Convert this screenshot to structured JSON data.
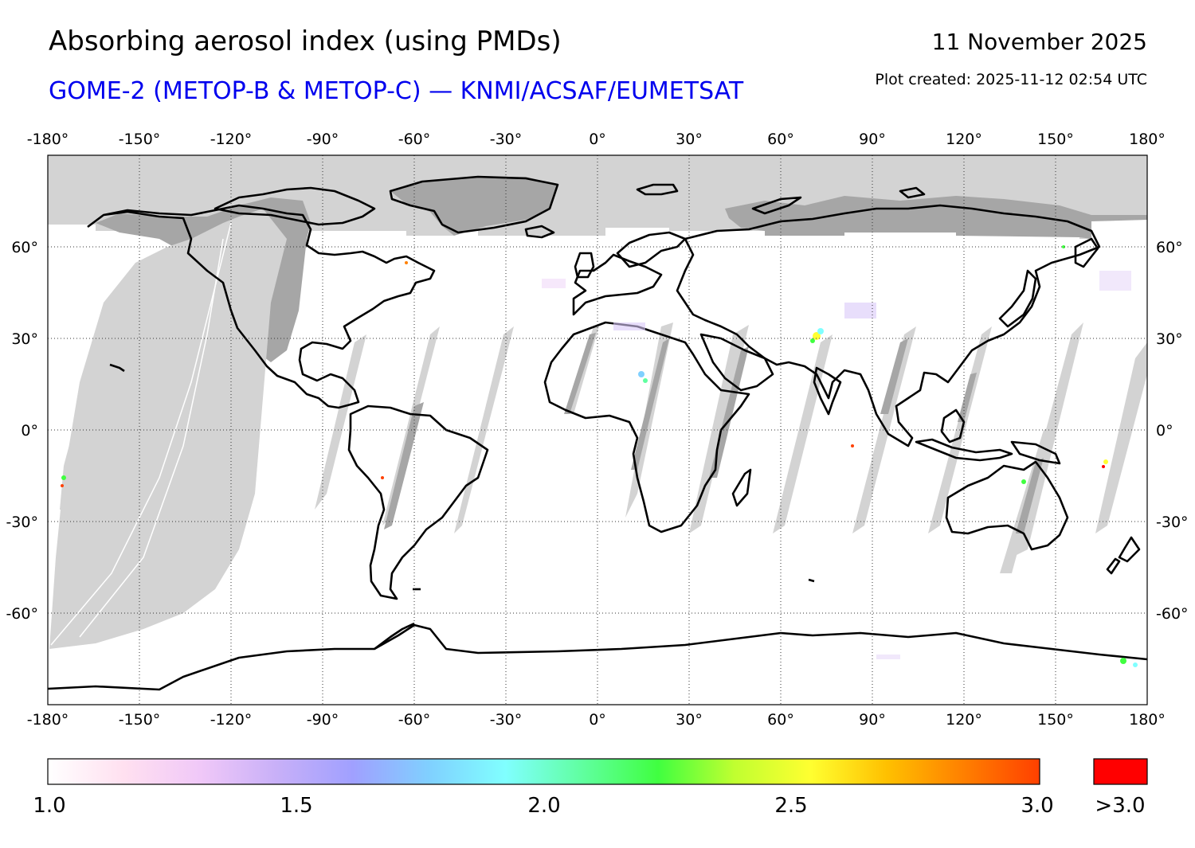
{
  "title": "Absorbing aerosol index (using PMDs)",
  "subtitle": "GOME-2 (METOP-B & METOP-C) — KNMI/ACSAF/EUMETSAT",
  "date": "11 November 2025",
  "plot_created": "Plot created: 2025-11-12 02:54 UTC",
  "colors": {
    "subtitle": "#0000ee",
    "no_data_light": "#d3d3d3",
    "no_data_dark": "#a6a6a6",
    "coastline": "#000000",
    "above_max": "#ff0000"
  },
  "map": {
    "projection": "equirectangular",
    "lon_range": [
      -180,
      180
    ],
    "lat_range": [
      -90,
      90
    ],
    "grid": "dotted",
    "lon_ticks": [
      "-180°",
      "-150°",
      "-120°",
      "-90°",
      "-60°",
      "-30°",
      "0°",
      "30°",
      "60°",
      "90°",
      "120°",
      "150°",
      "180°"
    ],
    "lat_ticks": [
      "60°",
      "30°",
      "0°",
      "-30°",
      "-60°"
    ]
  },
  "colorbar": {
    "ticks": [
      "1.0",
      "1.5",
      "2.0",
      "2.5",
      "3.0"
    ],
    "overflow_label": ">3.0",
    "gradient": [
      "#ffffff",
      "#ffe0f0",
      "#f0c8f8",
      "#c8b0f8",
      "#a0a0ff",
      "#80d0ff",
      "#80ffff",
      "#60ffa0",
      "#40ff40",
      "#c0ff30",
      "#ffff30",
      "#ffc000",
      "#ff8000",
      "#ff4000"
    ]
  }
}
